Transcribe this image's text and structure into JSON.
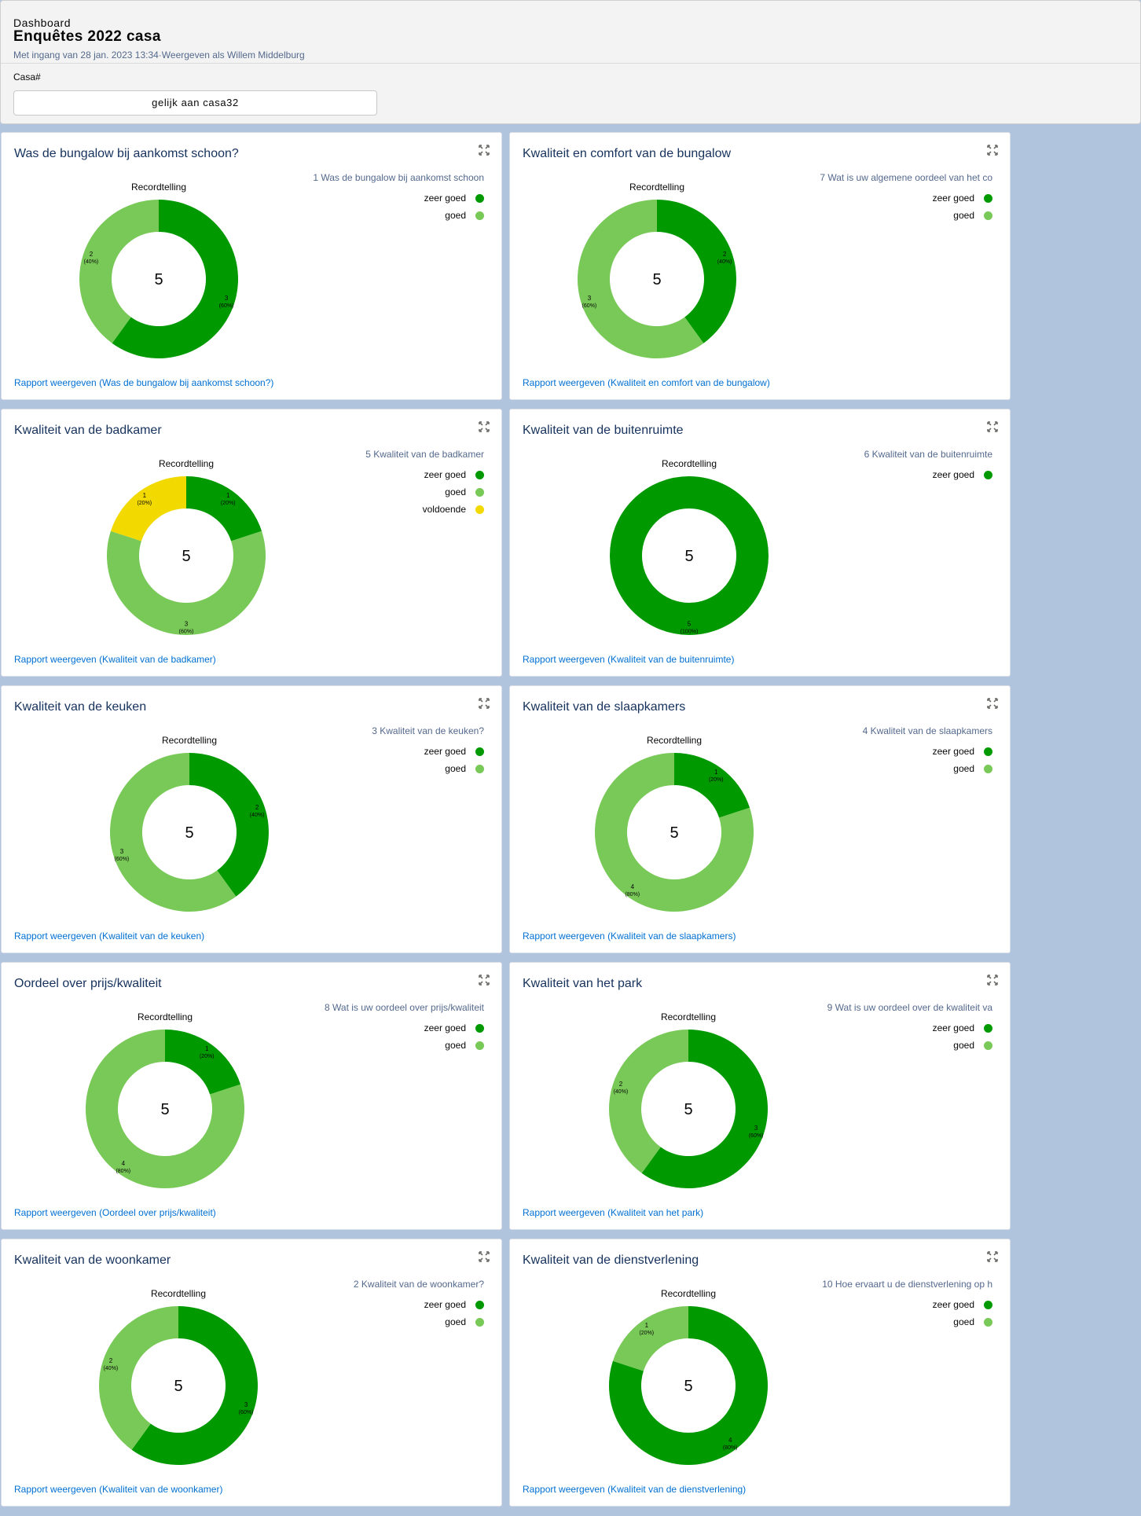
{
  "header": {
    "eyebrow": "Dashboard",
    "title": "Enquêtes 2022 casa",
    "subtitle": "Met ingang van 28 jan. 2023 13:34·Weergeven als Willem Middelburg",
    "filter_label": "Casa#",
    "filter_value": "gelijk aan casa32"
  },
  "colors": {
    "zeer goed": "#009900",
    "goed": "#78c957",
    "voldoende": "#f2da00"
  },
  "cards": [
    {
      "title": "Was de bungalow bij aankomst schoon?",
      "chart_title": "Recordtelling",
      "legend_title": "1 Was de bungalow bij aankomst schoon",
      "total": "5",
      "link": "Rapport weergeven (Was de bungalow bij aankomst schoon?)",
      "pos": [
        0,
        0
      ],
      "slices": [
        {
          "label": "zeer goed",
          "value": 3,
          "pct": "(60%)"
        },
        {
          "label": "goed",
          "value": 2,
          "pct": "(40%)"
        }
      ]
    },
    {
      "title": "Kwaliteit en comfort van de bungalow",
      "chart_title": "Recordtelling",
      "legend_title": "7 Wat is uw  algemene oordeel van het co",
      "total": "5",
      "link": "Rapport weergeven (Kwaliteit en comfort van de bungalow)",
      "pos": [
        1,
        0
      ],
      "slices": [
        {
          "label": "zeer goed",
          "value": 2,
          "pct": "(40%)"
        },
        {
          "label": "goed",
          "value": 3,
          "pct": "(60%)"
        }
      ]
    },
    {
      "title": "Kwaliteit van de badkamer",
      "chart_title": "Recordtelling",
      "legend_title": "5 Kwaliteit van de badkamer",
      "total": "5",
      "link": "Rapport weergeven (Kwaliteit van de badkamer)",
      "pos": [
        0,
        1
      ],
      "slices": [
        {
          "label": "zeer goed",
          "value": 1,
          "pct": "(20%)"
        },
        {
          "label": "goed",
          "value": 3,
          "pct": "(60%)"
        },
        {
          "label": "voldoende",
          "value": 1,
          "pct": "(20%)"
        }
      ]
    },
    {
      "title": "Kwaliteit van de buitenruimte",
      "chart_title": "Recordtelling",
      "legend_title": "6 Kwaliteit van de buitenruimte",
      "total": "5",
      "link": "Rapport weergeven (Kwaliteit van de buitenruimte)",
      "pos": [
        1,
        1
      ],
      "slices": [
        {
          "label": "zeer goed",
          "value": 5,
          "pct": "(100%)"
        }
      ]
    },
    {
      "title": "Kwaliteit van de keuken",
      "chart_title": "Recordtelling",
      "legend_title": "3 Kwaliteit van de keuken?",
      "total": "5",
      "link": "Rapport weergeven (Kwaliteit van de keuken)",
      "pos": [
        0,
        2
      ],
      "slices": [
        {
          "label": "zeer goed",
          "value": 2,
          "pct": "(40%)"
        },
        {
          "label": "goed",
          "value": 3,
          "pct": "(60%)"
        }
      ]
    },
    {
      "title": "Kwaliteit van de slaapkamers",
      "chart_title": "Recordtelling",
      "legend_title": "4 Kwaliteit van de slaapkamers",
      "total": "5",
      "link": "Rapport weergeven (Kwaliteit van de slaapkamers)",
      "pos": [
        1,
        2
      ],
      "slices": [
        {
          "label": "zeer goed",
          "value": 1,
          "pct": "(20%)"
        },
        {
          "label": "goed",
          "value": 4,
          "pct": "(80%)"
        }
      ]
    },
    {
      "title": "Oordeel over prijs/kwaliteit",
      "chart_title": "Recordtelling",
      "legend_title": "8 Wat is uw oordeel over prijs/kwaliteit",
      "total": "5",
      "link": "Rapport weergeven (Oordeel over prijs/kwaliteit)",
      "pos": [
        0,
        3
      ],
      "slices": [
        {
          "label": "zeer goed",
          "value": 1,
          "pct": "(20%)"
        },
        {
          "label": "goed",
          "value": 4,
          "pct": "(80%)"
        }
      ]
    },
    {
      "title": "Kwaliteit van het park",
      "chart_title": "Recordtelling",
      "legend_title": "9 Wat is uw oordeel over de kwaliteit va",
      "total": "5",
      "link": "Rapport weergeven (Kwaliteit van het park)",
      "pos": [
        1,
        3
      ],
      "slices": [
        {
          "label": "zeer goed",
          "value": 3,
          "pct": "(60%)"
        },
        {
          "label": "goed",
          "value": 2,
          "pct": "(40%)"
        }
      ]
    },
    {
      "title": "Kwaliteit van de woonkamer",
      "chart_title": "Recordtelling",
      "legend_title": "2 Kwaliteit van de woonkamer?",
      "total": "5",
      "link": "Rapport weergeven (Kwaliteit van de woonkamer)",
      "pos": [
        0,
        4
      ],
      "slices": [
        {
          "label": "zeer goed",
          "value": 3,
          "pct": "(60%)"
        },
        {
          "label": "goed",
          "value": 2,
          "pct": "(40%)"
        }
      ]
    },
    {
      "title": "Kwaliteit van de dienstverlening",
      "chart_title": "Recordtelling",
      "legend_title": "10 Hoe ervaart u de dienstverlening op h",
      "total": "5",
      "link": "Rapport weergeven (Kwaliteit van de dienstverlening)",
      "pos": [
        1,
        4
      ],
      "slices": [
        {
          "label": "zeer goed",
          "value": 4,
          "pct": "(80%)"
        },
        {
          "label": "goed",
          "value": 1,
          "pct": "(20%)"
        }
      ]
    }
  ],
  "chart_data": [
    {
      "type": "pie",
      "title": "Recordtelling",
      "categories": [
        "zeer goed",
        "goed"
      ],
      "values": [
        3,
        2
      ]
    },
    {
      "type": "pie",
      "title": "Recordtelling",
      "categories": [
        "zeer goed",
        "goed"
      ],
      "values": [
        2,
        3
      ]
    },
    {
      "type": "pie",
      "title": "Recordtelling",
      "categories": [
        "zeer goed",
        "goed",
        "voldoende"
      ],
      "values": [
        1,
        3,
        1
      ]
    },
    {
      "type": "pie",
      "title": "Recordtelling",
      "categories": [
        "zeer goed"
      ],
      "values": [
        5
      ]
    },
    {
      "type": "pie",
      "title": "Recordtelling",
      "categories": [
        "zeer goed",
        "goed"
      ],
      "values": [
        2,
        3
      ]
    },
    {
      "type": "pie",
      "title": "Recordtelling",
      "categories": [
        "zeer goed",
        "goed"
      ],
      "values": [
        1,
        4
      ]
    },
    {
      "type": "pie",
      "title": "Recordtelling",
      "categories": [
        "zeer goed",
        "goed"
      ],
      "values": [
        1,
        4
      ]
    },
    {
      "type": "pie",
      "title": "Recordtelling",
      "categories": [
        "zeer goed",
        "goed"
      ],
      "values": [
        3,
        2
      ]
    },
    {
      "type": "pie",
      "title": "Recordtelling",
      "categories": [
        "zeer goed",
        "goed"
      ],
      "values": [
        3,
        2
      ]
    },
    {
      "type": "pie",
      "title": "Recordtelling",
      "categories": [
        "zeer goed",
        "goed"
      ],
      "values": [
        4,
        1
      ]
    }
  ]
}
